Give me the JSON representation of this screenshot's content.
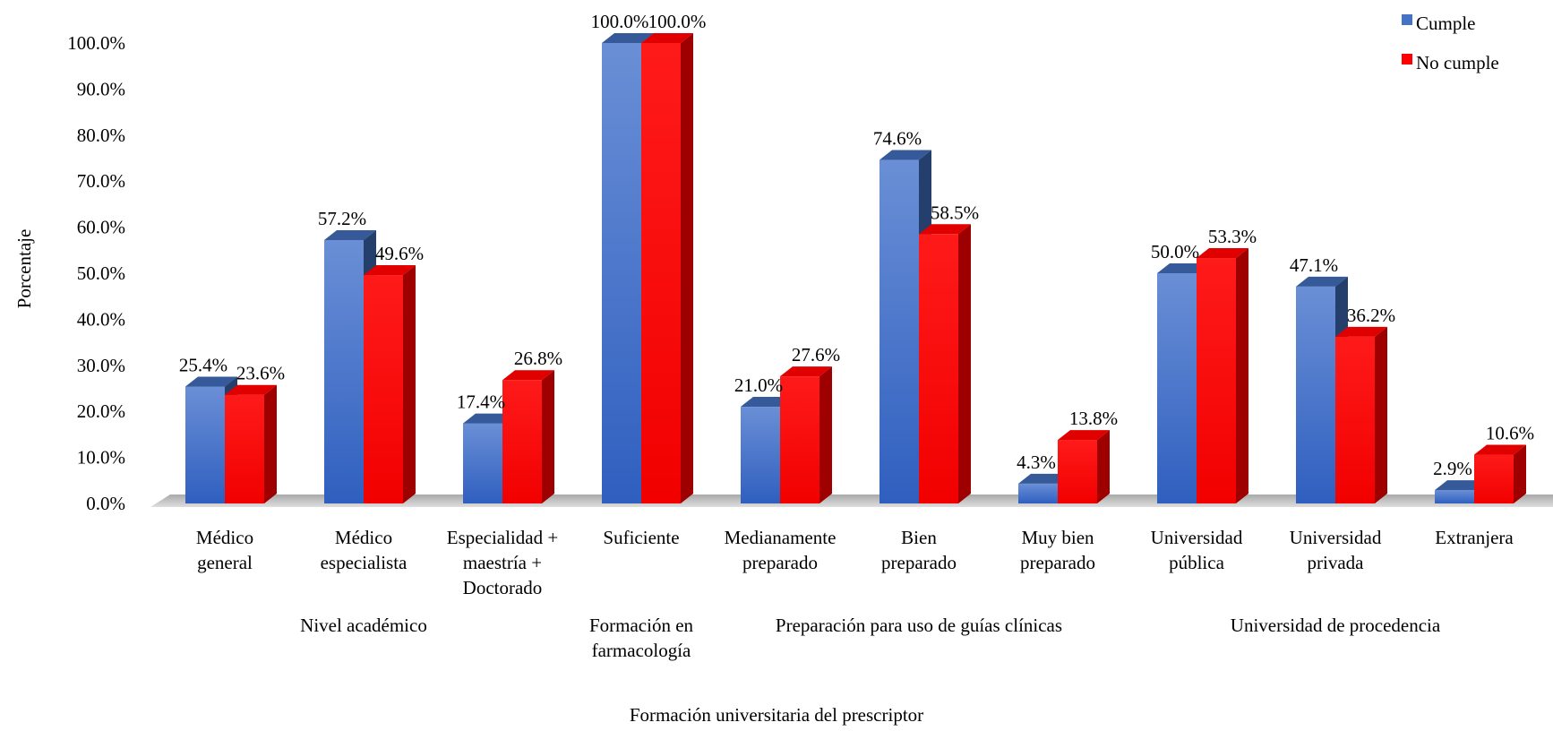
{
  "chart_data": {
    "type": "bar",
    "xlabel": "Formación universitaria del prescriptor",
    "ylabel": "Porcentaje",
    "ylim": [
      0,
      100
    ],
    "yticks": [
      "0.0%",
      "10.0%",
      "20.0%",
      "30.0%",
      "40.0%",
      "50.0%",
      "60.0%",
      "70.0%",
      "80.0%",
      "90.0%",
      "100.0%"
    ],
    "grid": false,
    "legend_position": "top-right",
    "categories": [
      [
        "Médico",
        "general"
      ],
      [
        "Médico",
        "especialista"
      ],
      [
        "Especialidad +",
        "maestría +",
        "Doctorado"
      ],
      [
        "Suficiente"
      ],
      [
        "Medianamente",
        "preparado"
      ],
      [
        "Bien",
        "preparado"
      ],
      [
        "Muy bien",
        "preparado"
      ],
      [
        "Universidad",
        "pública"
      ],
      [
        "Universidad",
        "privada"
      ],
      [
        "Extranjera"
      ]
    ],
    "groups": [
      {
        "label": [
          "Nivel académico"
        ],
        "categories": [
          0,
          2
        ]
      },
      {
        "label": [
          "Formación en",
          "farmacología"
        ],
        "categories": [
          3,
          3
        ]
      },
      {
        "label": [
          "Preparación para uso de guías clínicas"
        ],
        "categories": [
          4,
          6
        ]
      },
      {
        "label": [
          "Universidad de procedencia"
        ],
        "categories": [
          7,
          9
        ]
      }
    ],
    "series": [
      {
        "name": "Cumple",
        "color": "#4472C4",
        "values": [
          25.4,
          57.2,
          17.4,
          100.0,
          21.0,
          74.6,
          4.3,
          50.0,
          47.1,
          2.9
        ],
        "labels": [
          "25.4%",
          "57.2%",
          "17.4%",
          "100.0%",
          "21.0%",
          "74.6%",
          "4.3%",
          "50.0%",
          "47.1%",
          "2.9%"
        ]
      },
      {
        "name": "No cumple",
        "color": "#FF0000",
        "values": [
          23.6,
          49.6,
          26.8,
          100.0,
          27.6,
          58.5,
          13.8,
          53.3,
          36.2,
          10.6
        ],
        "labels": [
          "23.6%",
          "49.6%",
          "26.8%",
          "100.0%",
          "27.6%",
          "58.5%",
          "13.8%",
          "53.3%",
          "36.2%",
          "10.6%"
        ]
      }
    ]
  }
}
